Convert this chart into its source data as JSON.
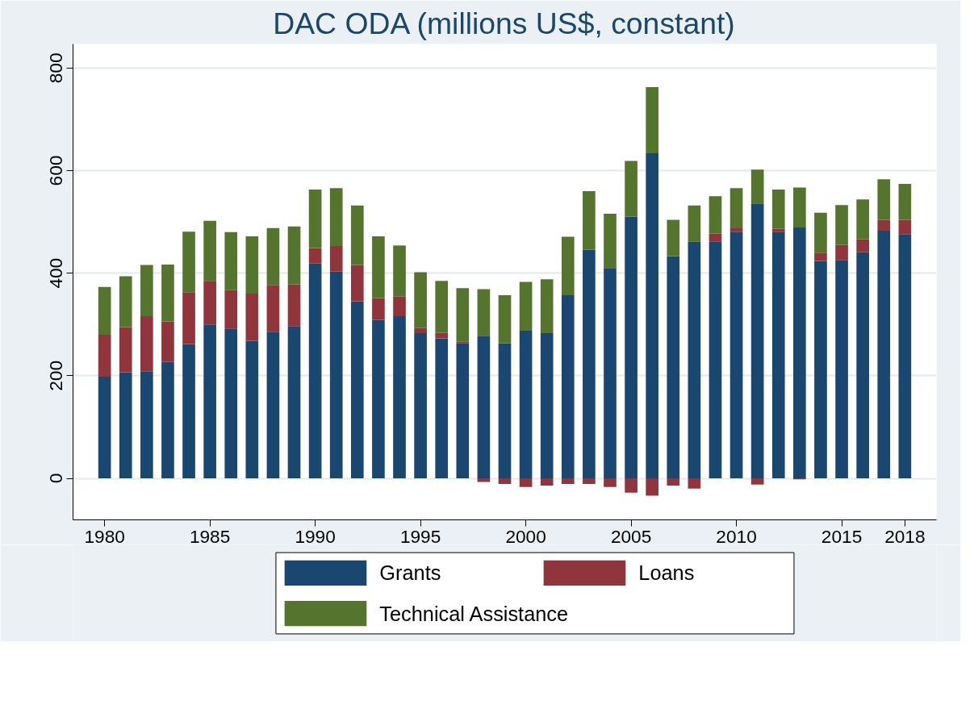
{
  "chart_data": {
    "type": "bar",
    "title": "DAC ODA (millions US$, constant)",
    "stacked": true,
    "x": [
      1980,
      1981,
      1982,
      1983,
      1984,
      1985,
      1986,
      1987,
      1988,
      1989,
      1990,
      1991,
      1992,
      1993,
      1994,
      1995,
      1996,
      1997,
      1998,
      1999,
      2000,
      2001,
      2002,
      2003,
      2004,
      2005,
      2006,
      2007,
      2008,
      2009,
      2010,
      2011,
      2012,
      2013,
      2014,
      2015,
      2016,
      2017,
      2018
    ],
    "series": [
      {
        "name": "Grants",
        "color": "#1a476f",
        "values": [
          198,
          207,
          209,
          227,
          262,
          300,
          292,
          268,
          286,
          297,
          419,
          403,
          345,
          309,
          316,
          283,
          273,
          264,
          278,
          263,
          288,
          283,
          357,
          446,
          410,
          510,
          634,
          433,
          461,
          462,
          481,
          536,
          480,
          489,
          424,
          426,
          441,
          483,
          476
        ]
      },
      {
        "name": "Loans",
        "color": "#90353b",
        "values": [
          82,
          88,
          107,
          79,
          101,
          85,
          75,
          92,
          91,
          81,
          30,
          50,
          71,
          42,
          39,
          10,
          11,
          3,
          -7,
          -11,
          -17,
          -14,
          -11,
          -11,
          -17,
          -28,
          -34,
          -14,
          -20,
          15,
          8,
          -12,
          7,
          -2,
          16,
          29,
          25,
          21,
          28
        ]
      },
      {
        "name": "Technical Assistance",
        "color": "#55752f",
        "values": [
          93,
          99,
          100,
          111,
          118,
          117,
          113,
          112,
          111,
          113,
          114,
          113,
          116,
          121,
          99,
          109,
          101,
          104,
          91,
          94,
          95,
          105,
          114,
          114,
          106,
          109,
          129,
          71,
          71,
          73,
          77,
          66,
          76,
          78,
          78,
          78,
          78,
          79,
          70
        ]
      }
    ],
    "xlim": [
      1978.5,
      2019.5
    ],
    "xticks": [
      1980,
      1985,
      1990,
      1995,
      2000,
      2005,
      2010,
      2015,
      2018
    ],
    "ylim": [
      -81,
      847
    ],
    "yticks": [
      0,
      200,
      400,
      600,
      800
    ],
    "grid": "y",
    "legend": "bottom"
  }
}
